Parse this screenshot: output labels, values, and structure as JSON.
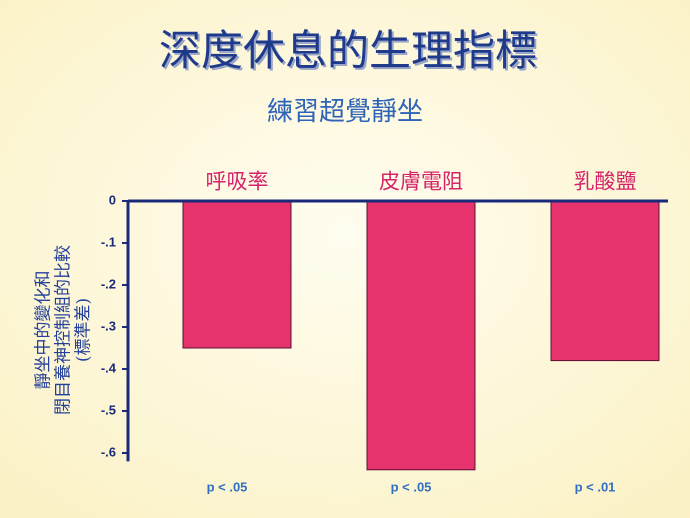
{
  "chart_data": {
    "type": "bar",
    "title": "深度休息的生理指標",
    "subtitle": "練習超覺靜坐",
    "y_label": [
      "靜坐中的變化和",
      "閉目養神控制組的比較",
      "(標準差)"
    ],
    "categories": [
      "呼吸率",
      "皮膚電阻",
      "乳酸鹽"
    ],
    "values": [
      -0.35,
      -0.64,
      -0.38
    ],
    "annotations": [
      "p < .05",
      "p < .05",
      "p < .01"
    ],
    "color": "#e6336e",
    "ylim": [
      -0.62,
      0
    ],
    "yticks": [
      0,
      {
        "value": -0.1,
        "label": "-.1"
      },
      {
        "value": -0.2,
        "label": "-.2"
      },
      {
        "value": -0.3,
        "label": "-.3"
      },
      {
        "value": -0.4,
        "label": "-.4"
      },
      {
        "value": -0.5,
        "label": "-.5"
      },
      {
        "value": -0.6,
        "label": "-.6"
      }
    ]
  }
}
